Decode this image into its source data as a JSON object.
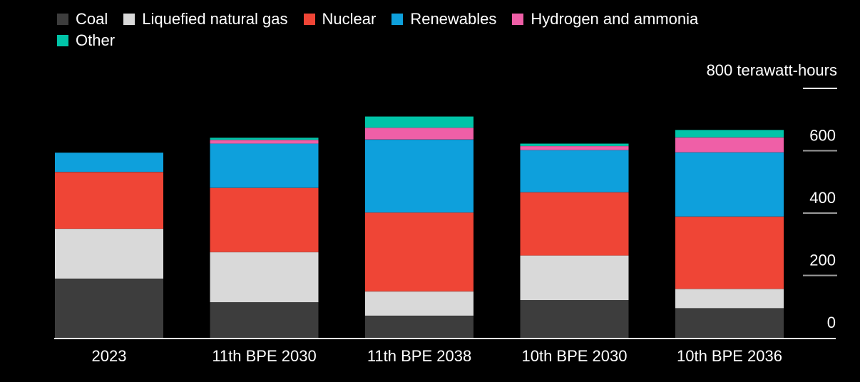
{
  "chart_data": {
    "type": "bar",
    "stacked": true,
    "categories": [
      "2023",
      "11th BPE 2030",
      "11th BPE 2038",
      "10th BPE 2030",
      "10th BPE 2036"
    ],
    "series": [
      {
        "name": "Coal",
        "color": "#3d3d3d",
        "values": [
          190,
          114,
          71,
          121,
          95
        ]
      },
      {
        "name": "Liquefied natural gas",
        "color": "#d9d9d9",
        "values": [
          160,
          161,
          78,
          143,
          62
        ]
      },
      {
        "name": "Nuclear",
        "color": "#ef4536",
        "values": [
          182,
          206,
          253,
          203,
          232
        ]
      },
      {
        "name": "Renewables",
        "color": "#0ea0dc",
        "values": [
          62,
          142,
          234,
          135,
          206
        ]
      },
      {
        "name": "Hydrogen and ammonia",
        "color": "#ef5fa7",
        "values": [
          0,
          12,
          38,
          13,
          48
        ]
      },
      {
        "name": "Other",
        "color": "#00c4a8",
        "values": [
          0,
          7,
          36,
          8,
          24
        ]
      }
    ],
    "ylabel": "800 terawatt-hours",
    "yticks": [
      "600",
      "400",
      "200",
      "0"
    ],
    "ytick_values": [
      600,
      400,
      200,
      0
    ],
    "ylim": [
      0,
      800
    ],
    "legend_position": "top-left"
  }
}
